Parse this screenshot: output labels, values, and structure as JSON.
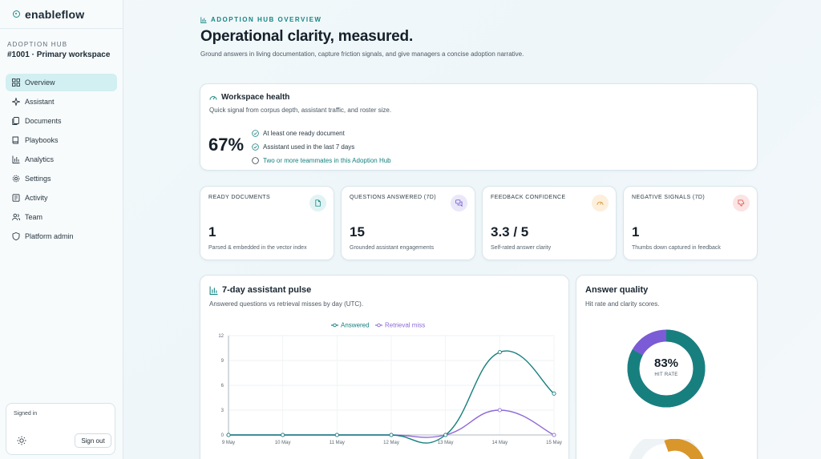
{
  "brand": {
    "name": "enableflow"
  },
  "workspace": {
    "eyebrow": "ADOPTION HUB",
    "name": "#1001 · Primary workspace"
  },
  "nav": [
    {
      "label": "Overview",
      "icon": "grid-icon",
      "active": true
    },
    {
      "label": "Assistant",
      "icon": "sparkle-icon"
    },
    {
      "label": "Documents",
      "icon": "documents-icon"
    },
    {
      "label": "Playbooks",
      "icon": "book-icon"
    },
    {
      "label": "Analytics",
      "icon": "bar-chart-icon"
    },
    {
      "label": "Settings",
      "icon": "gear-icon"
    },
    {
      "label": "Activity",
      "icon": "activity-icon"
    },
    {
      "label": "Team",
      "icon": "users-icon"
    },
    {
      "label": "Platform admin",
      "icon": "shield-icon"
    }
  ],
  "session": {
    "label": "Signed in",
    "signout": "Sign out",
    "theme_icon": "sun-icon"
  },
  "header": {
    "eyebrow": "ADOPTION HUB OVERVIEW",
    "title": "Operational clarity, measured.",
    "description": "Ground answers in living documentation, capture friction signals, and give managers a concise adoption narrative."
  },
  "health": {
    "title": "Workspace health",
    "description": "Quick signal from corpus depth, assistant traffic, and roster size.",
    "percent": "67%",
    "checks": [
      {
        "text": "At least one ready document",
        "done": true
      },
      {
        "text": "Assistant used in the last 7 days",
        "done": true
      },
      {
        "text": "Two or more teammates in this Adoption Hub",
        "done": false
      }
    ]
  },
  "stats": [
    {
      "label": "READY DOCUMENTS",
      "value": "1",
      "sub": "Parsed & embedded in the vector index",
      "icon": "document-icon",
      "color": "#1a8a86",
      "bg": "#e1f3f3"
    },
    {
      "label": "QUESTIONS ANSWERED (7D)",
      "value": "15",
      "sub": "Grounded assistant engagements",
      "icon": "chat-icon",
      "color": "#6a55c9",
      "bg": "#ebe7fa"
    },
    {
      "label": "FEEDBACK CONFIDENCE",
      "value": "3.3 / 5",
      "sub": "Self-rated answer clarity",
      "icon": "gauge-icon",
      "color": "#d9902a",
      "bg": "#fcefdc"
    },
    {
      "label": "NEGATIVE SIGNALS (7D)",
      "value": "1",
      "sub": "Thumbs down captured in feedback",
      "icon": "thumbs-down-icon",
      "color": "#d9534f",
      "bg": "#fbe4e3"
    }
  ],
  "pulse": {
    "title": "7-day assistant pulse",
    "description": "Answered questions vs retrieval misses by day (UTC)."
  },
  "quality": {
    "title": "Answer quality",
    "description": "Hit rate and clarity scores.",
    "hit_rate_value": 83,
    "hit_rate_text": "83%",
    "hit_rate_label": "HIT RATE",
    "colors": {
      "primary": "#17807e",
      "secondary": "#7b5bd6",
      "tertiary": "#d9962a"
    }
  },
  "chart_data": {
    "type": "line",
    "x": [
      "9 May",
      "10 May",
      "11 May",
      "12 May",
      "13 May",
      "14 May",
      "15 May"
    ],
    "ylim": [
      0,
      12
    ],
    "yticks": [
      0,
      3,
      6,
      9,
      12
    ],
    "legend_position": "top-center",
    "grid": true,
    "series": [
      {
        "name": "Answered",
        "color": "#17807e",
        "values": [
          0,
          0,
          0,
          0,
          0,
          10,
          5
        ]
      },
      {
        "name": "Retrieval miss",
        "color": "#8e6ad8",
        "values": [
          0,
          0,
          0,
          0,
          0,
          3,
          0
        ]
      }
    ]
  }
}
